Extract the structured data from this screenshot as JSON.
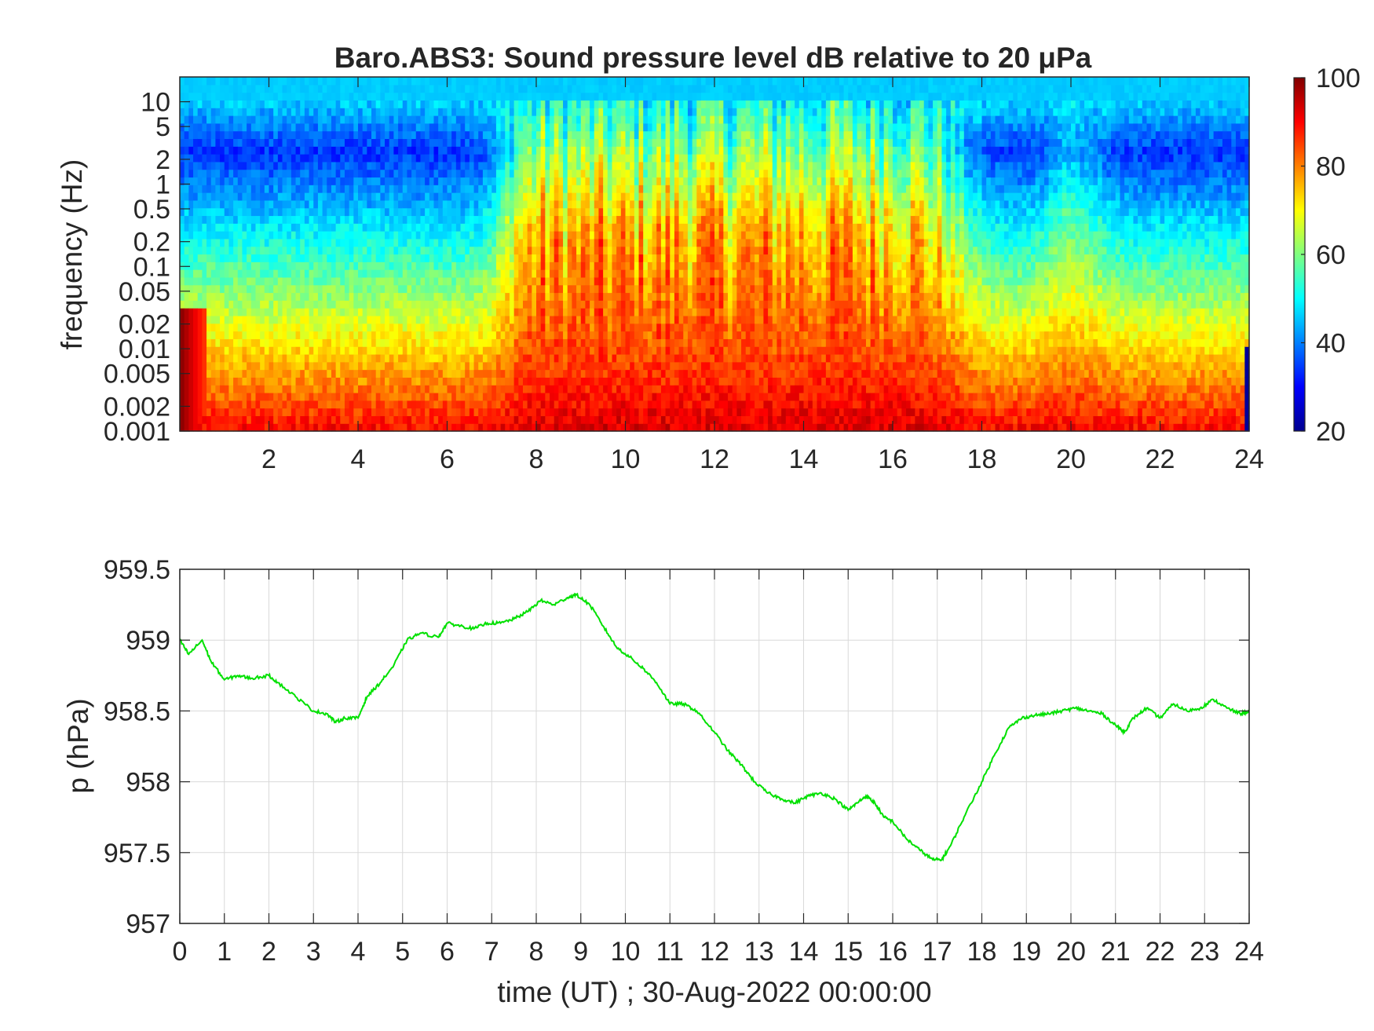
{
  "chart_data": [
    {
      "type": "heatmap",
      "title": "Baro.ABS3: Sound pressure level dB relative to 20 μPa",
      "ylabel": "frequency (Hz)",
      "yscale": "log",
      "xlim": [
        0,
        24
      ],
      "ylim": [
        0.001,
        20
      ],
      "xticks": [
        2,
        4,
        6,
        8,
        10,
        12,
        14,
        16,
        18,
        20,
        22,
        24
      ],
      "yticks": [
        0.001,
        0.002,
        0.005,
        0.01,
        0.02,
        0.05,
        0.1,
        0.2,
        0.5,
        1,
        2,
        5,
        10
      ],
      "ytick_labels": [
        "0.001",
        "0.002",
        "0.005",
        "0.01",
        "0.02",
        "0.05",
        "0.1",
        "0.2",
        "0.5",
        "1",
        "2",
        "5",
        "10"
      ],
      "colormap": "jet",
      "colorbar": {
        "min": 20,
        "max": 100,
        "ticks": [
          20,
          40,
          60,
          80,
          100
        ]
      },
      "regions": [
        {
          "time": [
            0,
            7.2
          ],
          "description_level_db_low_freq": 90,
          "level_db_mid_freq": 55,
          "level_db_1hz": 35
        },
        {
          "time": [
            7.2,
            17.5
          ],
          "level_db_low_freq": 92,
          "level_db_mid_freq": 80,
          "level_db_1hz": 60
        },
        {
          "time": [
            17.5,
            24
          ],
          "level_db_low_freq": 88,
          "level_db_mid_freq": 65,
          "level_db_1hz": 38
        }
      ]
    },
    {
      "type": "line",
      "xlabel": "time (UT) ; 30-Aug-2022 00:00:00",
      "ylabel": "p (hPa)",
      "xlim": [
        0,
        24
      ],
      "ylim": [
        957,
        959.5
      ],
      "xticks": [
        0,
        1,
        2,
        3,
        4,
        5,
        6,
        7,
        8,
        9,
        10,
        11,
        12,
        13,
        14,
        15,
        16,
        17,
        18,
        19,
        20,
        21,
        22,
        23,
        24
      ],
      "yticks": [
        957,
        957.5,
        958,
        958.5,
        959,
        959.5
      ],
      "ytick_labels": [
        "957",
        "957.5",
        "958",
        "958.5",
        "959",
        "959.5"
      ],
      "grid": true,
      "series": [
        {
          "color": "#00e000",
          "x": [
            0,
            0.2,
            0.5,
            0.7,
            1.0,
            1.3,
            1.6,
            2.0,
            2.2,
            2.6,
            3.0,
            3.3,
            3.5,
            3.7,
            4.0,
            4.2,
            4.5,
            4.8,
            5.1,
            5.4,
            5.8,
            6.0,
            6.3,
            6.6,
            6.9,
            7.2,
            7.5,
            7.8,
            8.1,
            8.4,
            8.7,
            8.9,
            9.2,
            9.5,
            9.8,
            10.1,
            10.4,
            10.7,
            11.0,
            11.3,
            11.6,
            12.0,
            12.3,
            12.6,
            12.9,
            13.2,
            13.5,
            13.8,
            14.1,
            14.4,
            14.7,
            15.0,
            15.2,
            15.4,
            15.6,
            15.8,
            16.0,
            16.3,
            16.6,
            16.9,
            17.1,
            17.3,
            17.6,
            18.0,
            18.3,
            18.6,
            18.9,
            19.2,
            19.5,
            19.8,
            20.1,
            20.4,
            20.7,
            21.0,
            21.2,
            21.4,
            21.7,
            22.0,
            22.3,
            22.6,
            22.9,
            23.2,
            23.5,
            23.8,
            24.0
          ],
          "values": [
            959.0,
            958.9,
            959.0,
            958.85,
            958.72,
            958.75,
            958.73,
            958.75,
            958.7,
            958.6,
            958.5,
            958.48,
            958.42,
            958.45,
            958.45,
            958.6,
            958.7,
            958.82,
            959.0,
            959.05,
            959.02,
            959.12,
            959.1,
            959.08,
            959.12,
            959.12,
            959.15,
            959.2,
            959.28,
            959.25,
            959.3,
            959.32,
            959.25,
            959.1,
            958.95,
            958.88,
            958.8,
            958.7,
            958.55,
            958.55,
            958.5,
            958.35,
            958.22,
            958.12,
            958.0,
            957.92,
            957.88,
            957.85,
            957.9,
            957.92,
            957.88,
            957.8,
            957.85,
            957.9,
            957.85,
            957.75,
            957.72,
            957.6,
            957.52,
            957.45,
            957.45,
            957.55,
            957.75,
            958.0,
            958.2,
            958.38,
            958.45,
            958.47,
            958.48,
            958.5,
            958.52,
            958.5,
            958.48,
            958.4,
            958.35,
            958.45,
            958.52,
            958.45,
            958.55,
            958.5,
            958.52,
            958.58,
            958.52,
            958.48,
            958.5
          ]
        }
      ]
    }
  ]
}
